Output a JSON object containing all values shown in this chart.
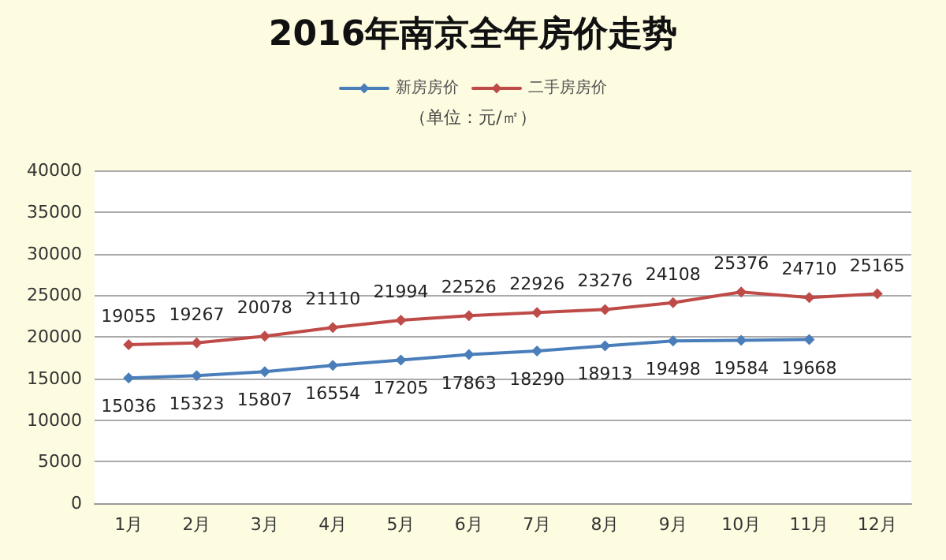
{
  "chart_data": {
    "type": "line",
    "title": "2016年南京全年房价走势",
    "subtitle": "（单位：元/㎡）",
    "categories": [
      "1月",
      "2月",
      "3月",
      "4月",
      "5月",
      "6月",
      "7月",
      "8月",
      "9月",
      "10月",
      "11月",
      "12月"
    ],
    "series": [
      {
        "name": "新房房价",
        "color": "#4a7ebb",
        "values": [
          15036,
          15323,
          15807,
          16554,
          17205,
          17863,
          18290,
          18913,
          19498,
          19584,
          19668,
          null
        ]
      },
      {
        "name": "二手房房价",
        "color": "#be4b48",
        "values": [
          19055,
          19267,
          20078,
          21110,
          21994,
          22526,
          22926,
          23276,
          24108,
          25376,
          24710,
          25165
        ]
      }
    ],
    "ylim": [
      0,
      40000
    ],
    "yticks": [
      0,
      5000,
      10000,
      15000,
      20000,
      25000,
      30000,
      35000,
      40000
    ],
    "grid": "y",
    "legend": "top",
    "marker": "diamond",
    "line_style": "solid",
    "data_labels": true
  }
}
